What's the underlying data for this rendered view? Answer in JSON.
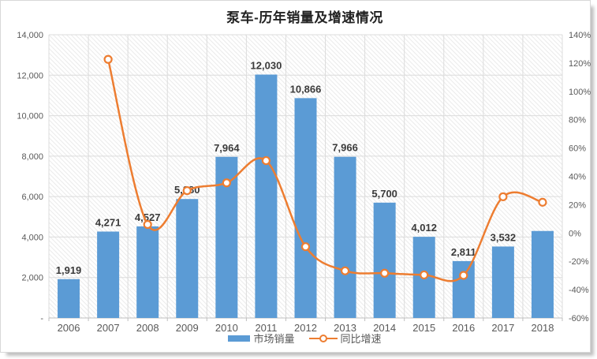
{
  "title": "泵车-历年销量及增速情况",
  "legend": {
    "sales": "市场销量",
    "growth": "同比增速"
  },
  "colors": {
    "bar": "#5B9BD5",
    "line": "#ED7D31",
    "marker_fill": "#FFFFFF",
    "grid": "#DCDCDC",
    "hatch": "#EBEBEB",
    "axis_line": "#BFBFBF",
    "axis_text": "#595959",
    "data_label": "#3A3A3A",
    "title_text": "#222222"
  },
  "axes": {
    "left_ticks": [
      "14,000",
      "12,000",
      "10,000",
      "8,000",
      "6,000",
      "4,000",
      "2,000",
      "-"
    ],
    "right_ticks": [
      "140%",
      "120%",
      "100%",
      "80%",
      "60%",
      "40%",
      "20%",
      "0%",
      "-20%",
      "-40%",
      "-60%"
    ]
  },
  "chart_data": {
    "type": "combo",
    "title": "泵车-历年销量及增速情况",
    "categories": [
      "2006",
      "2007",
      "2008",
      "2009",
      "2010",
      "2011",
      "2012",
      "2013",
      "2014",
      "2015",
      "2016",
      "2017",
      "2018"
    ],
    "series": [
      {
        "name": "市场销量",
        "type": "bar",
        "axis": "left",
        "values": [
          1919,
          4271,
          4527,
          5880,
          7964,
          12030,
          10866,
          7966,
          5700,
          4012,
          2811,
          3532,
          4300
        ],
        "labels": [
          "1,919",
          "4,271",
          "4,527",
          "5,880",
          "7,964",
          "12,030",
          "10,866",
          "7,966",
          "5,700",
          "4,012",
          "2,811",
          "3,532",
          ""
        ]
      },
      {
        "name": "同比增速",
        "type": "line",
        "axis": "right",
        "values_pct": [
          null,
          122.6,
          6.0,
          29.9,
          35.4,
          51.1,
          -9.7,
          -26.7,
          -28.4,
          -29.6,
          -29.9,
          25.6,
          21.7
        ]
      }
    ],
    "left_axis": {
      "min": 0,
      "max": 14000,
      "step": 2000
    },
    "right_axis": {
      "min": -60,
      "max": 140,
      "step": 20,
      "unit": "%"
    },
    "grid": true,
    "legend_position": "bottom"
  }
}
